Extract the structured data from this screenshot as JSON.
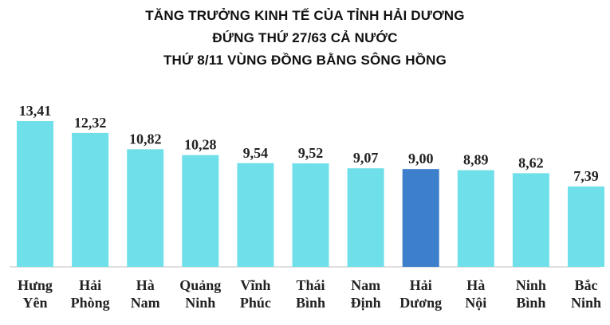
{
  "chart_data": {
    "type": "bar",
    "title_lines": [
      "TĂNG TRƯỞNG KINH TẾ CỦA TỈNH HẢI DƯƠNG",
      "ĐỨNG THỨ 27/63 CẢ NƯỚC",
      "THỨ 8/11 VÙNG ĐỒNG BẰNG SÔNG HỒNG"
    ],
    "categories": [
      [
        "Hưng",
        "Yên"
      ],
      [
        "Hải",
        "Phòng"
      ],
      [
        "Hà",
        "Nam"
      ],
      [
        "Quảng",
        "Ninh"
      ],
      [
        "Vĩnh",
        "Phúc"
      ],
      [
        "Thái",
        "Bình"
      ],
      [
        "Nam",
        "Định"
      ],
      [
        "Hải",
        "Dương"
      ],
      [
        "Hà",
        "Nội"
      ],
      [
        "Ninh",
        "Bình"
      ],
      [
        "Bắc",
        "Ninh"
      ]
    ],
    "values": [
      13.41,
      12.32,
      10.82,
      10.28,
      9.54,
      9.52,
      9.07,
      9.0,
      8.89,
      8.62,
      7.39
    ],
    "value_labels": [
      "13,41",
      "12,32",
      "10,82",
      "10,28",
      "9,54",
      "9,52",
      "9,07",
      "9,00",
      "8,89",
      "8,62",
      "7,39"
    ],
    "highlight_index": 7,
    "colors": {
      "bar": "#6fe0ea",
      "highlight": "#3d7fcb",
      "baseline": "#bfbfbf"
    },
    "ylim": [
      0,
      13.41
    ],
    "grid": false,
    "legend": "none"
  }
}
